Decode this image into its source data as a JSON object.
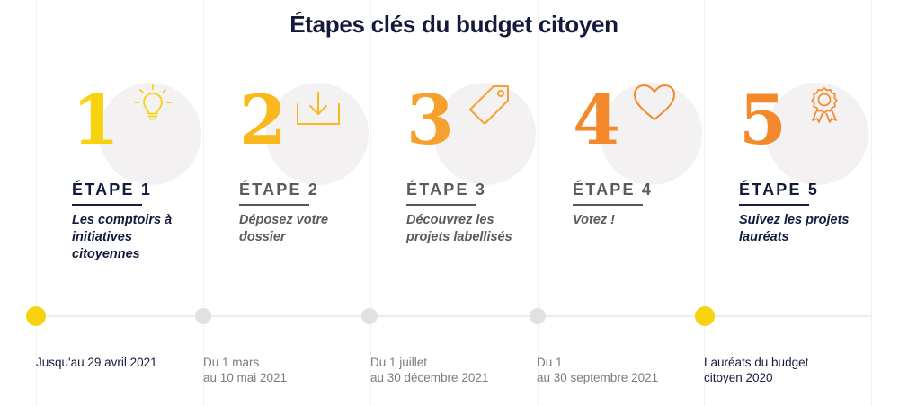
{
  "title": "Étapes clés du budget citoyen",
  "colors": {
    "yellow": "#f8d20f",
    "yellow_orange": "#f9b91c",
    "orange": "#f6a12e",
    "orange_dark": "#f3892b",
    "navy": "#141a3c",
    "gray_text": "#5a5a5f",
    "dot_gray": "#e1e1e3"
  },
  "steps": [
    {
      "number": "1",
      "label": "ÉTAPE 1",
      "description": "Les comptoirs à initiatives citoyennes",
      "icon": "lightbulb-icon",
      "state": "active",
      "date": "Jusqu'au 29 avril 2021"
    },
    {
      "number": "2",
      "label": "ÉTAPE 2",
      "description": "Déposez votre dossier",
      "icon": "download-tray-icon",
      "state": "inactive",
      "date": "Du 1 mars\nau 10 mai 2021"
    },
    {
      "number": "3",
      "label": "ÉTAPE 3",
      "description": "Découvrez les projets labellisés",
      "icon": "tag-icon",
      "state": "inactive",
      "date": "Du 1 juillet\nau 30 décembre 2021"
    },
    {
      "number": "4",
      "label": "ÉTAPE 4",
      "description": "Votez !",
      "icon": "heart-icon",
      "state": "inactive",
      "date": "Du 1\nau 30 septembre 2021"
    },
    {
      "number": "5",
      "label": "ÉTAPE 5",
      "description": "Suivez les projets lauréats",
      "icon": "award-rosette-icon",
      "state": "active",
      "date": "Lauréats du budget\ncitoyen 2020"
    }
  ]
}
